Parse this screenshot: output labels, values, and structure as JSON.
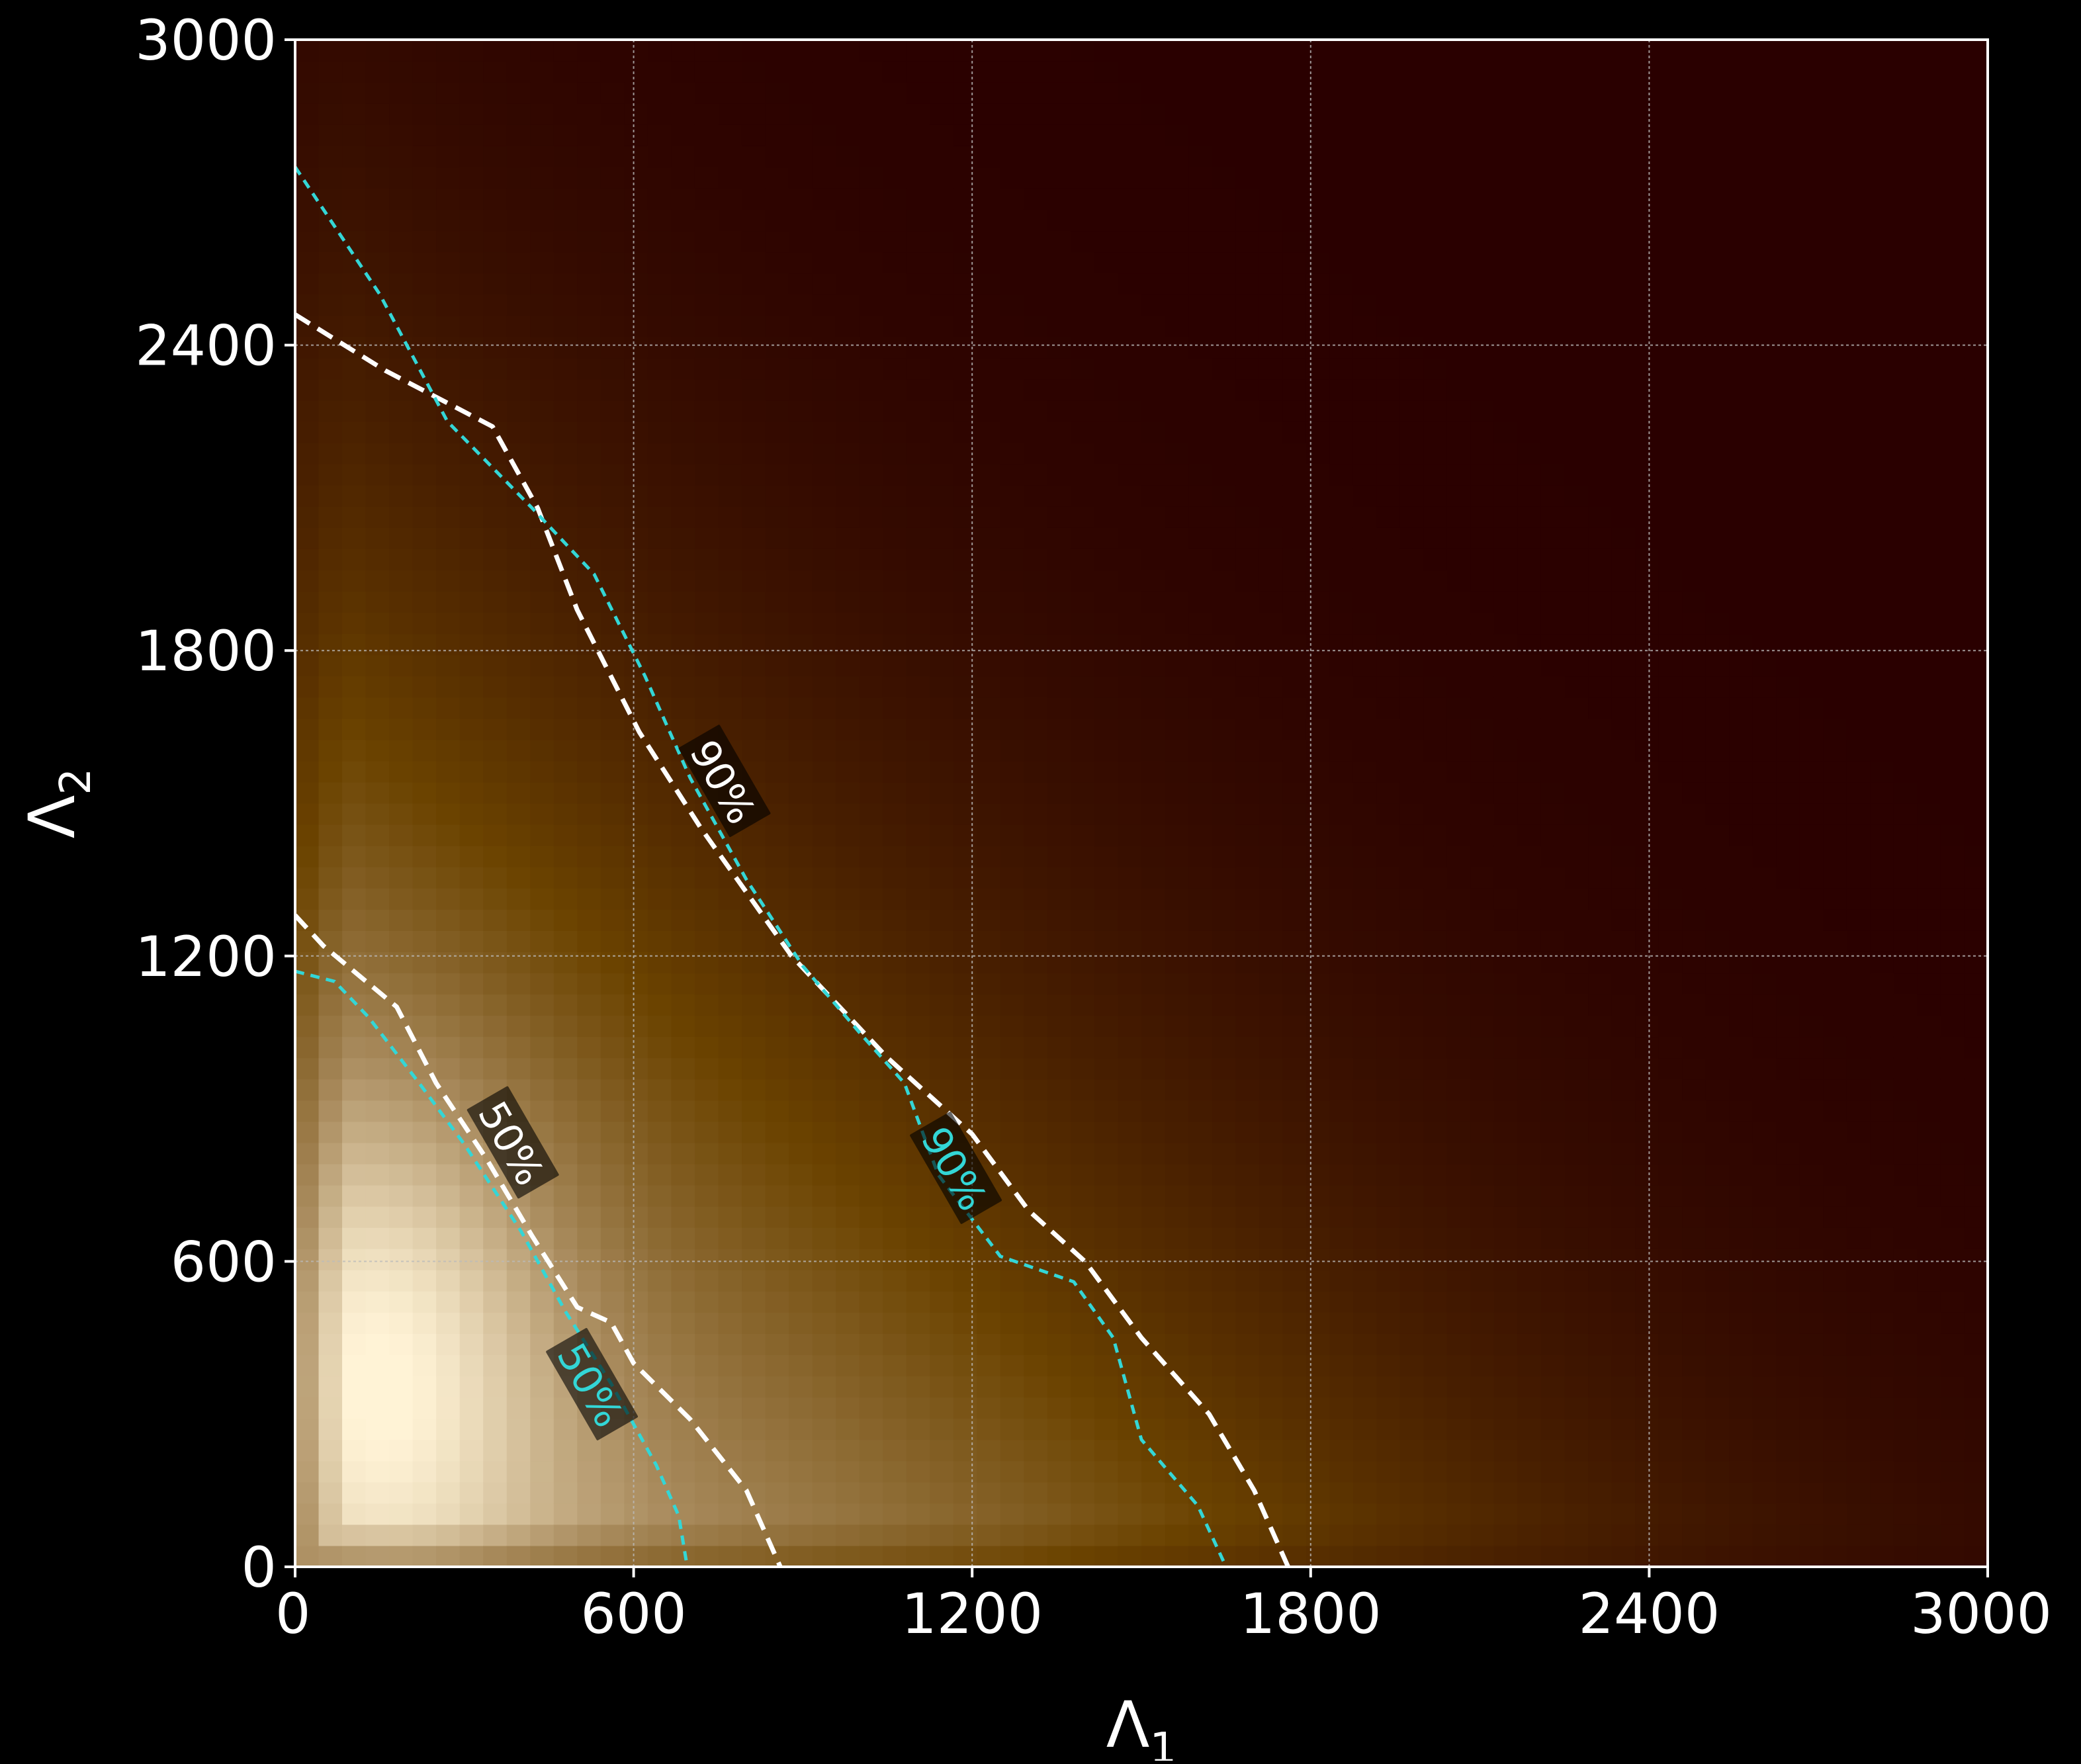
{
  "chart_data": {
    "type": "heatmap",
    "xlabel": "Λ",
    "xlabel_subscript": "1",
    "ylabel": "Λ",
    "ylabel_subscript": "2",
    "xlim": [
      0,
      3000
    ],
    "ylim": [
      0,
      3000
    ],
    "xticks": [
      "0",
      "600",
      "1200",
      "1800",
      "2400",
      "3000"
    ],
    "yticks": [
      "0",
      "600",
      "1200",
      "1800",
      "2400",
      "3000"
    ],
    "grid": true,
    "colormap": [
      "#2a0000",
      "#6b4300",
      "#a88a5c",
      "#fff3d6"
    ],
    "grid_color": "#bbbbbb",
    "background": "#000000",
    "series": [
      {
        "style": "white dashed",
        "color": "#ffffff",
        "level_label": "50%",
        "label_at": [
          380,
          830
        ],
        "points": [
          [
            0,
            1280
          ],
          [
            50,
            1220
          ],
          [
            180,
            1100
          ],
          [
            250,
            950
          ],
          [
            340,
            800
          ],
          [
            420,
            650
          ],
          [
            500,
            510
          ],
          [
            560,
            480
          ],
          [
            600,
            400
          ],
          [
            700,
            290
          ],
          [
            800,
            150
          ],
          [
            860,
            0
          ]
        ]
      },
      {
        "style": "cyan dashed",
        "color": "#33d6d6",
        "level_label": "50%",
        "label_at": [
          520,
          355
        ],
        "points": [
          [
            0,
            1170
          ],
          [
            70,
            1150
          ],
          [
            130,
            1080
          ],
          [
            220,
            950
          ],
          [
            300,
            830
          ],
          [
            400,
            660
          ],
          [
            480,
            500
          ],
          [
            560,
            360
          ],
          [
            640,
            200
          ],
          [
            680,
            100
          ],
          [
            695,
            0
          ]
        ]
      },
      {
        "style": "white dashed",
        "color": "#ffffff",
        "level_label": "90%",
        "label_at": [
          755,
          1540
        ],
        "points": [
          [
            0,
            2460
          ],
          [
            160,
            2350
          ],
          [
            350,
            2240
          ],
          [
            430,
            2080
          ],
          [
            500,
            1880
          ],
          [
            610,
            1640
          ],
          [
            720,
            1450
          ],
          [
            880,
            1200
          ],
          [
            1050,
            1000
          ],
          [
            1200,
            850
          ],
          [
            1300,
            700
          ],
          [
            1400,
            600
          ],
          [
            1500,
            450
          ],
          [
            1620,
            300
          ],
          [
            1700,
            150
          ],
          [
            1760,
            0
          ]
        ]
      },
      {
        "style": "cyan dashed",
        "color": "#33d6d6",
        "level_label": "90%",
        "label_at": [
          1165,
          780
        ],
        "points": [
          [
            0,
            2750
          ],
          [
            150,
            2500
          ],
          [
            270,
            2250
          ],
          [
            420,
            2080
          ],
          [
            530,
            1950
          ],
          [
            620,
            1750
          ],
          [
            700,
            1550
          ],
          [
            800,
            1350
          ],
          [
            900,
            1180
          ],
          [
            1000,
            1050
          ],
          [
            1080,
            950
          ],
          [
            1140,
            770
          ],
          [
            1250,
            610
          ],
          [
            1380,
            560
          ],
          [
            1450,
            450
          ],
          [
            1500,
            250
          ],
          [
            1600,
            120
          ],
          [
            1650,
            0
          ]
        ]
      }
    ]
  }
}
